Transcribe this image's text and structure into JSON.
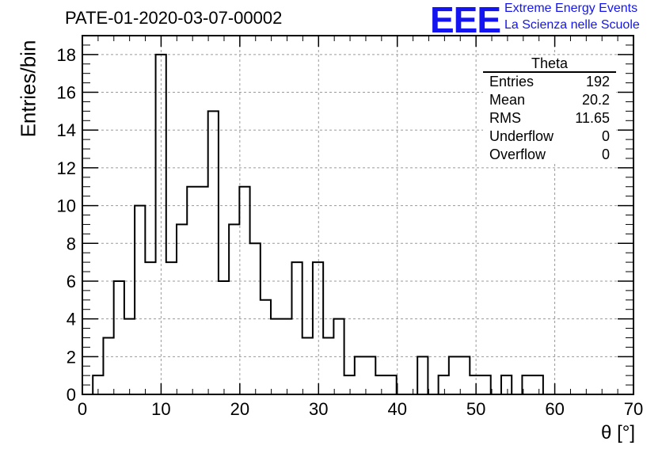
{
  "chart_data": {
    "type": "bar",
    "title": "PATE-01-2020-03-07-00002",
    "xlabel": "θ [°]",
    "ylabel": "Entries/bin",
    "xlim": [
      0,
      70
    ],
    "ylim": [
      0,
      19
    ],
    "x_ticks": [
      "0",
      "10",
      "20",
      "30",
      "40",
      "50",
      "60",
      "70"
    ],
    "y_ticks": [
      "0",
      "2",
      "4",
      "6",
      "8",
      "10",
      "12",
      "14",
      "16",
      "18"
    ],
    "grid": true,
    "bin_width": 1.33,
    "bin_start": 0,
    "values": [
      0,
      1,
      3,
      6,
      4,
      10,
      7,
      18,
      7,
      9,
      11,
      11,
      15,
      6,
      9,
      11,
      8,
      5,
      4,
      4,
      7,
      3,
      7,
      3,
      4,
      1,
      2,
      2,
      1,
      1,
      0,
      0,
      2,
      0,
      1,
      2,
      2,
      1,
      1,
      0,
      1,
      0,
      1,
      1,
      0,
      0,
      0,
      0,
      0,
      0,
      0,
      0
    ],
    "stats_box": {
      "title": "Theta",
      "rows": [
        {
          "label": "Entries",
          "value": "192"
        },
        {
          "label": "Mean",
          "value": "20.2"
        },
        {
          "label": "RMS",
          "value": "11.65"
        },
        {
          "label": "Underflow",
          "value": "0"
        },
        {
          "label": "Overflow",
          "value": "0"
        }
      ]
    }
  },
  "logo": {
    "text": "EEE",
    "line1": "Extreme Energy Events",
    "line2": "La Scienza nelle Scuole",
    "color": "#1414f0"
  }
}
